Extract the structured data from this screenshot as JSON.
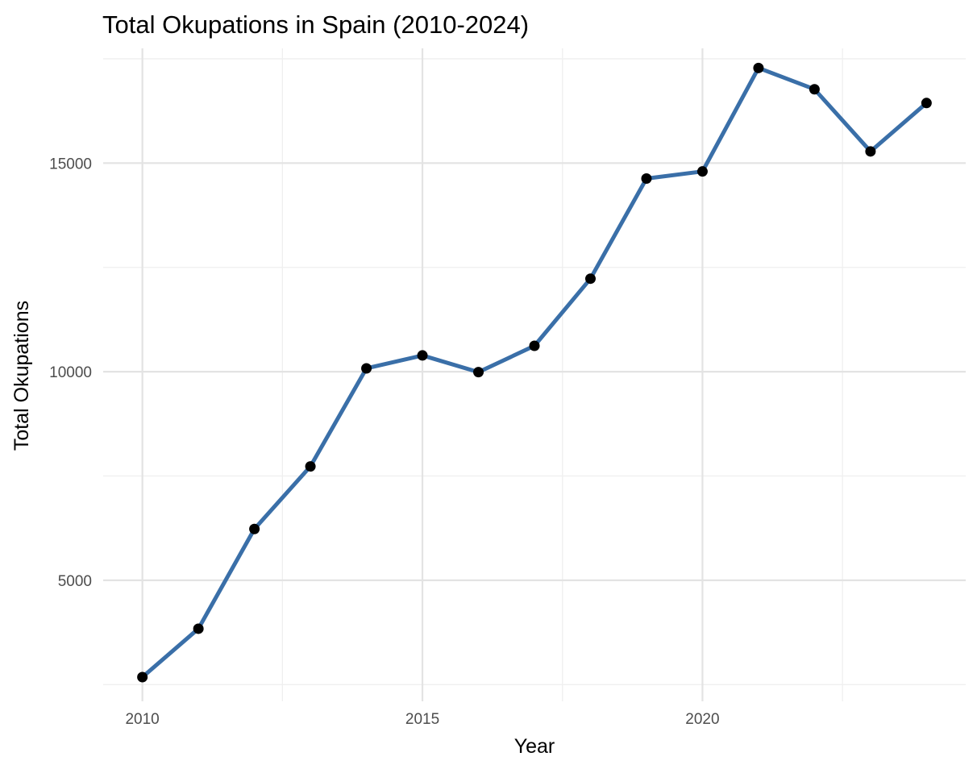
{
  "chart_data": {
    "type": "line",
    "title": "Total Okupations in Spain (2010-2024)",
    "xlabel": "Year",
    "ylabel": "Total Okupations",
    "x": [
      2010,
      2011,
      2012,
      2013,
      2014,
      2015,
      2016,
      2017,
      2018,
      2019,
      2020,
      2021,
      2022,
      2023,
      2024
    ],
    "series": [
      {
        "values": [
          2680,
          3840,
          6230,
          7730,
          10080,
          10390,
          9990,
          10620,
          12230,
          14630,
          14800,
          17280,
          16770,
          15280,
          16440
        ]
      }
    ],
    "xticks": [
      "2010",
      "2015",
      "2020"
    ],
    "yticks": [
      "5000",
      "10000",
      "15000"
    ],
    "xlim": [
      2009.3,
      2024.7
    ],
    "ylim": [
      2100,
      17750
    ],
    "grid": true,
    "line_color": "#3a6fa8",
    "point_color": "#000000"
  }
}
